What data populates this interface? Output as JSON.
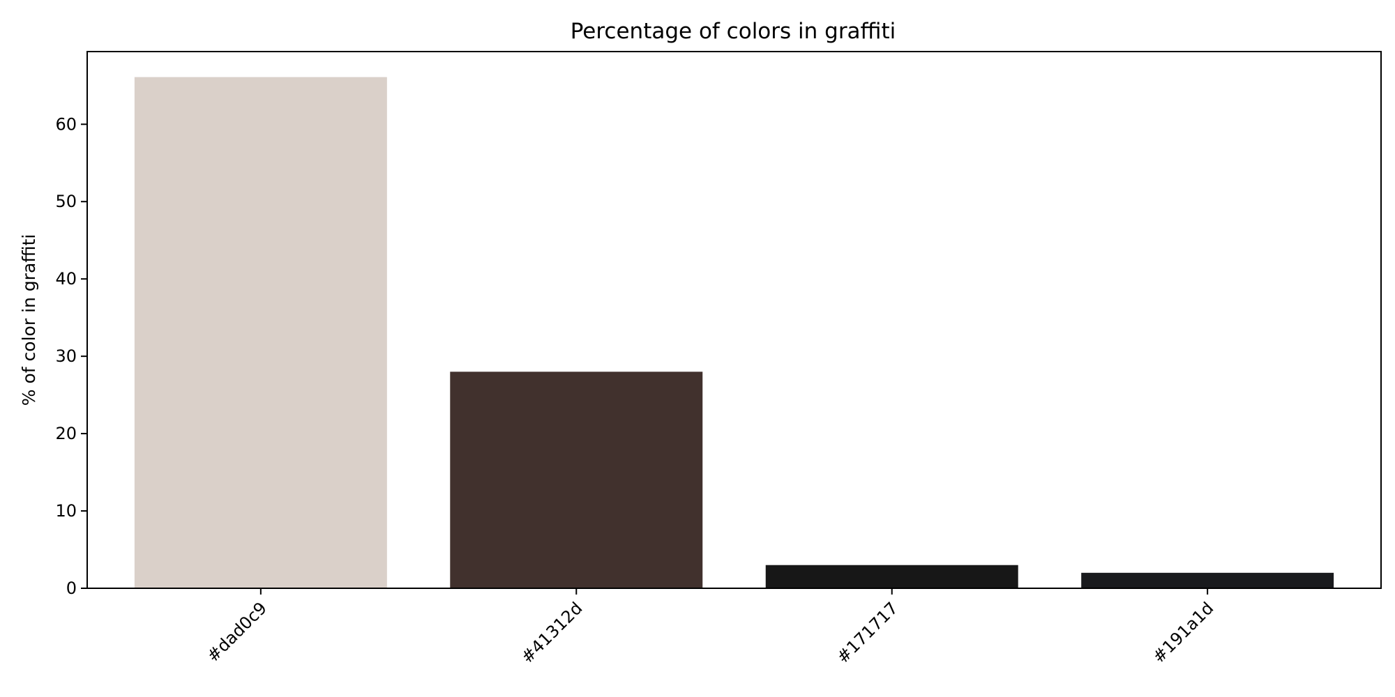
{
  "chart_data": {
    "type": "bar",
    "title": "Percentage of colors in graffiti",
    "xlabel": "",
    "ylabel": "% of color in graffiti",
    "categories": [
      "#dad0c9",
      "#41312d",
      "#171717",
      "#191a1d"
    ],
    "values": [
      66.1,
      28.0,
      3.0,
      2.0
    ],
    "colors": [
      "#dad0c9",
      "#41312d",
      "#171717",
      "#191a1d"
    ],
    "ylim": [
      0,
      69.4
    ],
    "yticks": [
      0,
      10,
      20,
      30,
      40,
      50,
      60
    ],
    "grid": false,
    "legend": "none"
  }
}
